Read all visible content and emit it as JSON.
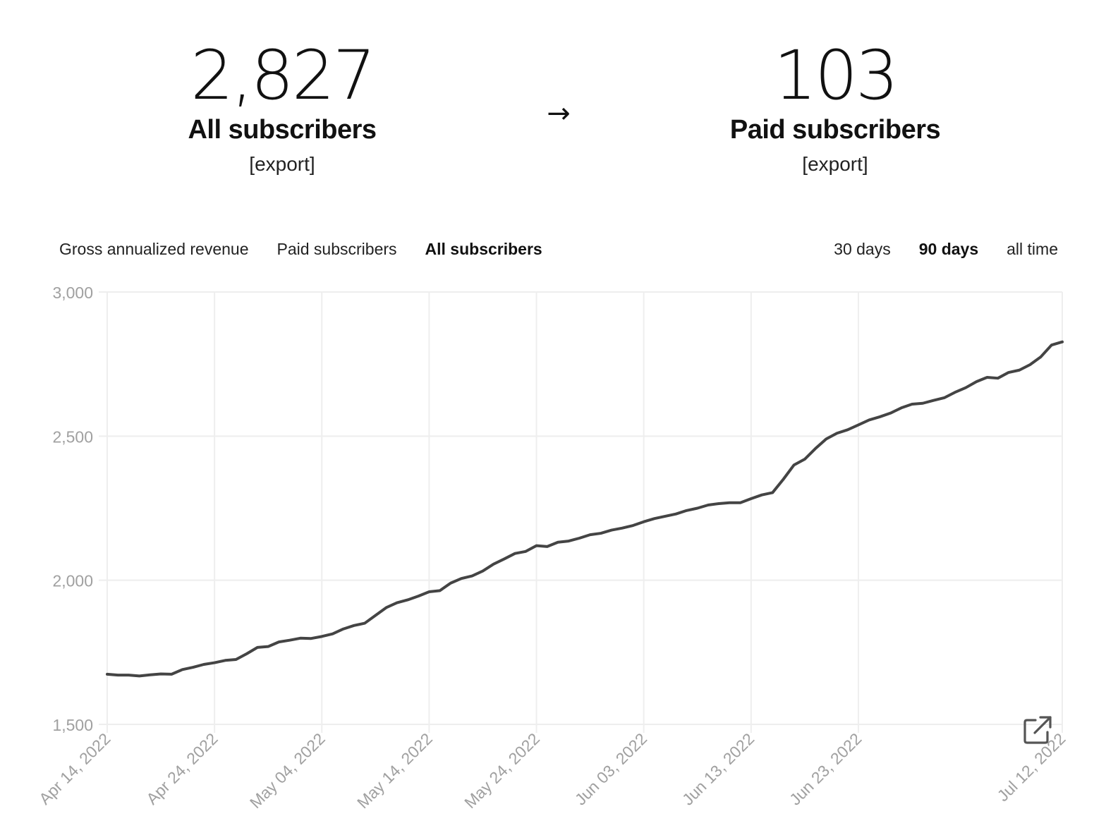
{
  "summary": {
    "all_subscribers": {
      "value": "2,827",
      "label": "All subscribers",
      "export_label": "[export]"
    },
    "arrow": "→",
    "paid_subscribers": {
      "value": "103",
      "label": "Paid subscribers",
      "export_label": "[export]"
    }
  },
  "metric_tabs": [
    {
      "label": "Gross annualized revenue",
      "active": false
    },
    {
      "label": "Paid subscribers",
      "active": false
    },
    {
      "label": "All subscribers",
      "active": true
    }
  ],
  "range_tabs": [
    {
      "label": "30 days",
      "active": false
    },
    {
      "label": "90 days",
      "active": true
    },
    {
      "label": "all time",
      "active": false
    }
  ],
  "icons": {
    "popout": "external-link-icon"
  },
  "colors": {
    "line": "#444444",
    "grid": "#eeeeee",
    "tick_text": "#a0a0a0"
  },
  "chart_data": {
    "type": "line",
    "title": "",
    "xlabel": "",
    "ylabel": "",
    "ylim": [
      1500,
      3000
    ],
    "xlim": [
      "2022-04-14",
      "2022-07-12"
    ],
    "grid": true,
    "y_ticks": [
      "1,500",
      "2,000",
      "2,500",
      "3,000"
    ],
    "y_tick_values": [
      1500,
      2000,
      2500,
      3000
    ],
    "x_ticks": [
      "Apr 14, 2022",
      "Apr 24, 2022",
      "May 04, 2022",
      "May 14, 2022",
      "May 24, 2022",
      "Jun 03, 2022",
      "Jun 13, 2022",
      "Jun 23, 2022",
      "Jul 12, 2022"
    ],
    "x_tick_dates": [
      "2022-04-14",
      "2022-04-24",
      "2022-05-04",
      "2022-05-14",
      "2022-05-24",
      "2022-06-03",
      "2022-06-13",
      "2022-06-23",
      "2022-07-12"
    ],
    "series": [
      {
        "x": [
          "2022-04-14",
          "2022-04-15",
          "2022-04-16",
          "2022-04-17",
          "2022-04-18",
          "2022-04-19",
          "2022-04-20",
          "2022-04-21",
          "2022-04-22",
          "2022-04-23",
          "2022-04-24",
          "2022-04-25",
          "2022-04-26",
          "2022-04-27",
          "2022-04-28",
          "2022-04-29",
          "2022-04-30",
          "2022-05-01",
          "2022-05-02",
          "2022-05-03",
          "2022-05-04",
          "2022-05-05",
          "2022-05-06",
          "2022-05-07",
          "2022-05-08",
          "2022-05-09",
          "2022-05-10",
          "2022-05-11",
          "2022-05-12",
          "2022-05-13",
          "2022-05-14",
          "2022-05-15",
          "2022-05-16",
          "2022-05-17",
          "2022-05-18",
          "2022-05-19",
          "2022-05-20",
          "2022-05-21",
          "2022-05-22",
          "2022-05-23",
          "2022-05-24",
          "2022-05-25",
          "2022-05-26",
          "2022-05-27",
          "2022-05-28",
          "2022-05-29",
          "2022-05-30",
          "2022-05-31",
          "2022-06-01",
          "2022-06-02",
          "2022-06-03",
          "2022-06-04",
          "2022-06-05",
          "2022-06-06",
          "2022-06-07",
          "2022-06-08",
          "2022-06-09",
          "2022-06-10",
          "2022-06-11",
          "2022-06-12",
          "2022-06-13",
          "2022-06-14",
          "2022-06-15",
          "2022-06-16",
          "2022-06-17",
          "2022-06-18",
          "2022-06-19",
          "2022-06-20",
          "2022-06-21",
          "2022-06-22",
          "2022-06-23",
          "2022-06-24",
          "2022-06-25",
          "2022-06-26",
          "2022-06-27",
          "2022-06-28",
          "2022-06-29",
          "2022-06-30",
          "2022-07-01",
          "2022-07-02",
          "2022-07-03",
          "2022-07-04",
          "2022-07-05",
          "2022-07-06",
          "2022-07-07",
          "2022-07-08",
          "2022-07-09",
          "2022-07-10",
          "2022-07-11",
          "2022-07-12"
        ],
        "values": [
          1674,
          1671,
          1671,
          1668,
          1672,
          1675,
          1674,
          1690,
          1698,
          1708,
          1714,
          1722,
          1725,
          1745,
          1767,
          1770,
          1786,
          1792,
          1799,
          1798,
          1805,
          1814,
          1831,
          1843,
          1851,
          1878,
          1905,
          1922,
          1932,
          1945,
          1960,
          1964,
          1990,
          2006,
          2015,
          2032,
          2056,
          2074,
          2093,
          2100,
          2120,
          2117,
          2132,
          2136,
          2146,
          2158,
          2163,
          2174,
          2181,
          2190,
          2203,
          2214,
          2222,
          2230,
          2242,
          2250,
          2261,
          2266,
          2269,
          2269,
          2283,
          2296,
          2304,
          2350,
          2400,
          2420,
          2457,
          2490,
          2510,
          2522,
          2539,
          2556,
          2567,
          2580,
          2598,
          2611,
          2614,
          2624,
          2633,
          2652,
          2668,
          2689,
          2704,
          2701,
          2721,
          2729,
          2748,
          2775,
          2816,
          2827
        ]
      }
    ]
  }
}
